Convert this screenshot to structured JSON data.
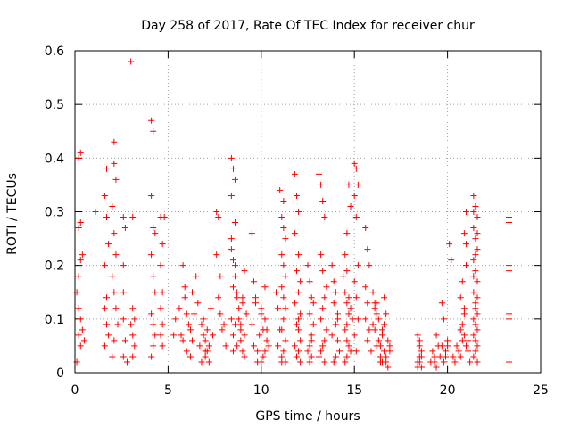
{
  "chart_data": {
    "type": "scatter",
    "title": "Day 258 of 2017, Rate Of TEC Index for receiver chur",
    "xlabel": "GPS time / hours",
    "ylabel": "ROTI / TECUs",
    "xlim": [
      0,
      25
    ],
    "ylim": [
      0,
      0.6
    ],
    "xticks": [
      0,
      5,
      10,
      15,
      20,
      25
    ],
    "yticks": [
      0,
      0.1,
      0.2,
      0.3,
      0.4,
      0.5,
      0.6
    ],
    "xtick_labels": [
      "0",
      "5",
      "10",
      "15",
      "20",
      "25"
    ],
    "ytick_labels": [
      "0",
      "0.1",
      "0.2",
      "0.3",
      "0.4",
      "0.5",
      "0.6"
    ],
    "grid": true,
    "marker": "+",
    "color": "#ff0000",
    "series": [
      {
        "name": "ROTI",
        "x": [
          0.1,
          0.2,
          0.3,
          0.3,
          0.4,
          0.5,
          0.1,
          0.2,
          0.2,
          0.3,
          0.4,
          0.2,
          0.3,
          0.2,
          0.3,
          1.1,
          1.6,
          1.7,
          1.7,
          1.6,
          1.8,
          1.7,
          1.6,
          1.7,
          1.6,
          1.8,
          2.1,
          2.1,
          2.2,
          2.0,
          2.1,
          2.2,
          2.0,
          2.1,
          2.2,
          2.3,
          2.1,
          2.0,
          2.6,
          2.7,
          2.6,
          2.6,
          2.6,
          2.7,
          2.6,
          2.8,
          3.0,
          3.1,
          3.1,
          3.2,
          3.0,
          3.1,
          3.2,
          3.1,
          4.1,
          4.2,
          4.1,
          4.2,
          4.3,
          4.1,
          4.2,
          4.3,
          4.1,
          4.2,
          4.3,
          4.2,
          4.1,
          4.6,
          4.7,
          4.6,
          4.7,
          4.6,
          4.7,
          4.6,
          4.7,
          4.8,
          5.3,
          5.4,
          5.6,
          5.8,
          5.9,
          5.7,
          5.8,
          6.0,
          5.9,
          6.1,
          6.0,
          6.2,
          6.3,
          6.2,
          6.4,
          6.5,
          6.3,
          6.6,
          6.7,
          6.8,
          6.9,
          7.0,
          6.8,
          7.1,
          7.2,
          7.0,
          7.1,
          7.3,
          6.9,
          7.2,
          7.4,
          7.0,
          7.6,
          7.7,
          7.6,
          7.8,
          7.7,
          7.8,
          8.0,
          7.9,
          8.1,
          8.4,
          8.5,
          8.6,
          8.4,
          8.6,
          8.4,
          8.5,
          8.6,
          8.5,
          8.7,
          8.8,
          8.4,
          8.6,
          8.5,
          8.7,
          8.5,
          8.6,
          8.4,
          8.7,
          8.8,
          8.9,
          9.0,
          8.9,
          9.1,
          9.0,
          9.2,
          9.1,
          8.9,
          9.0,
          9.1,
          9.5,
          9.6,
          9.7,
          9.5,
          9.6,
          9.8,
          9.9,
          10.0,
          9.7,
          9.8,
          10.1,
          10.2,
          10.0,
          10.3,
          10.1,
          10.2,
          10.3,
          10.4,
          10.2,
          10.0,
          10.8,
          10.9,
          11.0,
          10.9,
          11.1,
          11.0,
          11.2,
          11.1,
          11.2,
          11.3,
          11.1,
          11.2,
          11.3,
          11.1,
          11.2,
          11.3,
          11.2,
          11.1,
          11.3,
          11.2,
          11.1,
          11.3,
          11.8,
          11.9,
          12.0,
          11.8,
          12.0,
          11.9,
          12.1,
          12.0,
          11.8,
          12.1,
          11.9,
          12.0,
          12.1,
          11.8,
          12.0,
          11.9,
          12.1,
          12.0,
          12.5,
          12.6,
          12.7,
          12.6,
          12.8,
          12.7,
          12.6,
          12.5,
          12.7,
          12.8,
          12.6,
          12.7,
          13.1,
          13.2,
          13.3,
          13.4,
          13.2,
          13.3,
          13.5,
          13.4,
          13.3,
          13.2,
          13.5,
          13.4,
          13.3,
          13.2,
          13.1,
          13.4,
          13.8,
          13.9,
          14.0,
          13.9,
          14.1,
          14.0,
          13.8,
          14.1,
          14.2,
          14.0,
          13.9,
          14.1,
          14.4,
          14.5,
          14.6,
          14.7,
          14.6,
          14.5,
          14.6,
          14.7,
          14.8,
          14.6,
          14.5,
          14.7,
          14.8,
          14.6,
          14.5,
          14.7,
          14.6,
          14.8,
          14.9,
          15.0,
          15.1,
          15.2,
          15.0,
          15.1,
          15.2,
          15.0,
          15.1,
          15.2,
          15.0,
          15.1,
          15.6,
          15.7,
          15.8,
          15.6,
          15.7,
          15.6,
          15.8,
          15.7,
          15.9,
          16.0,
          16.1,
          16.2,
          16.0,
          16.1,
          16.3,
          16.2,
          16.4,
          16.1,
          16.3,
          16.5,
          16.4,
          16.6,
          16.5,
          16.7,
          16.6,
          16.8,
          16.7,
          16.9,
          16.6,
          16.8,
          16.5,
          16.7,
          16.9,
          16.4,
          16.2,
          18.4,
          18.5,
          18.6,
          18.5,
          18.4,
          18.6,
          18.5,
          18.4,
          18.6,
          18.5,
          19.1,
          19.2,
          19.3,
          19.4,
          19.5,
          19.3,
          19.4,
          19.6,
          19.7,
          19.8,
          19.9,
          20.0,
          19.7,
          19.8,
          20.1,
          20.2,
          19.9,
          20.0,
          20.3,
          20.4,
          20.5,
          20.6,
          20.7,
          20.8,
          20.9,
          20.7,
          20.8,
          21.0,
          20.9,
          21.0,
          20.8,
          20.9,
          21.0,
          20.7,
          21.1,
          21.2,
          21.1,
          21.0,
          20.9,
          21.4,
          21.5,
          21.6,
          21.4,
          21.5,
          21.6,
          21.4,
          21.5,
          21.6,
          21.4,
          21.5,
          21.6,
          21.4,
          21.5,
          21.6,
          21.4,
          21.5,
          21.6,
          21.5,
          21.4,
          21.6,
          21.5,
          21.4,
          21.6,
          21.5,
          21.6,
          21.4,
          23.3,
          23.3,
          23.3,
          23.3,
          23.3,
          23.3,
          23.3
        ],
        "y": [
          0.02,
          0.07,
          0.05,
          0.1,
          0.08,
          0.06,
          0.15,
          0.12,
          0.18,
          0.21,
          0.22,
          0.4,
          0.41,
          0.27,
          0.28,
          0.3,
          0.05,
          0.09,
          0.14,
          0.2,
          0.24,
          0.29,
          0.33,
          0.38,
          0.12,
          0.07,
          0.43,
          0.39,
          0.36,
          0.31,
          0.26,
          0.22,
          0.18,
          0.15,
          0.12,
          0.09,
          0.06,
          0.03,
          0.29,
          0.27,
          0.2,
          0.15,
          0.1,
          0.06,
          0.03,
          0.02,
          0.58,
          0.29,
          0.12,
          0.1,
          0.09,
          0.07,
          0.05,
          0.03,
          0.47,
          0.45,
          0.33,
          0.27,
          0.26,
          0.22,
          0.18,
          0.15,
          0.11,
          0.09,
          0.07,
          0.05,
          0.03,
          0.29,
          0.24,
          0.2,
          0.15,
          0.12,
          0.09,
          0.07,
          0.05,
          0.29,
          0.07,
          0.1,
          0.12,
          0.2,
          0.16,
          0.07,
          0.06,
          0.11,
          0.14,
          0.09,
          0.04,
          0.03,
          0.06,
          0.08,
          0.11,
          0.18,
          0.15,
          0.13,
          0.05,
          0.02,
          0.07,
          0.06,
          0.09,
          0.04,
          0.02,
          0.03,
          0.08,
          0.12,
          0.1,
          0.05,
          0.07,
          0.04,
          0.3,
          0.29,
          0.22,
          0.18,
          0.14,
          0.11,
          0.09,
          0.08,
          0.05,
          0.4,
          0.38,
          0.36,
          0.33,
          0.28,
          0.25,
          0.21,
          0.18,
          0.16,
          0.14,
          0.12,
          0.1,
          0.09,
          0.07,
          0.05,
          0.04,
          0.2,
          0.23,
          0.15,
          0.1,
          0.08,
          0.13,
          0.06,
          0.19,
          0.04,
          0.11,
          0.03,
          0.09,
          0.14,
          0.07,
          0.26,
          0.17,
          0.13,
          0.09,
          0.05,
          0.04,
          0.07,
          0.11,
          0.14,
          0.02,
          0.08,
          0.16,
          0.12,
          0.06,
          0.03,
          0.1,
          0.08,
          0.05,
          0.04,
          0.02,
          0.15,
          0.12,
          0.08,
          0.05,
          0.02,
          0.34,
          0.32,
          0.29,
          0.27,
          0.25,
          0.22,
          0.2,
          0.18,
          0.16,
          0.14,
          0.12,
          0.1,
          0.08,
          0.06,
          0.04,
          0.03,
          0.02,
          0.37,
          0.33,
          0.3,
          0.26,
          0.22,
          0.19,
          0.17,
          0.15,
          0.13,
          0.11,
          0.09,
          0.08,
          0.06,
          0.05,
          0.04,
          0.03,
          0.02,
          0.1,
          0.2,
          0.17,
          0.14,
          0.11,
          0.09,
          0.07,
          0.05,
          0.04,
          0.03,
          0.13,
          0.02,
          0.06,
          0.37,
          0.35,
          0.32,
          0.29,
          0.22,
          0.19,
          0.16,
          0.14,
          0.12,
          0.1,
          0.08,
          0.06,
          0.05,
          0.04,
          0.03,
          0.02,
          0.2,
          0.17,
          0.15,
          0.13,
          0.11,
          0.09,
          0.07,
          0.06,
          0.04,
          0.03,
          0.02,
          0.1,
          0.18,
          0.15,
          0.13,
          0.11,
          0.09,
          0.08,
          0.06,
          0.05,
          0.04,
          0.03,
          0.02,
          0.35,
          0.31,
          0.26,
          0.22,
          0.14,
          0.19,
          0.12,
          0.1,
          0.39,
          0.38,
          0.35,
          0.33,
          0.29,
          0.2,
          0.17,
          0.14,
          0.1,
          0.07,
          0.04,
          0.27,
          0.23,
          0.2,
          0.16,
          0.13,
          0.1,
          0.08,
          0.06,
          0.04,
          0.15,
          0.13,
          0.11,
          0.09,
          0.08,
          0.06,
          0.05,
          0.03,
          0.12,
          0.1,
          0.07,
          0.05,
          0.04,
          0.02,
          0.03,
          0.09,
          0.06,
          0.02,
          0.04,
          0.14,
          0.01,
          0.08,
          0.11,
          0.05,
          0.02,
          0.13,
          0.07,
          0.05,
          0.03,
          0.02,
          0.01,
          0.04,
          0.06,
          0.02,
          0.01,
          0.03,
          0.02,
          0.04,
          0.03,
          0.01,
          0.05,
          0.02,
          0.07,
          0.03,
          0.05,
          0.02,
          0.04,
          0.06,
          0.13,
          0.1,
          0.24,
          0.21,
          0.03,
          0.05,
          0.03,
          0.02,
          0.05,
          0.04,
          0.08,
          0.06,
          0.11,
          0.14,
          0.17,
          0.2,
          0.26,
          0.3,
          0.09,
          0.07,
          0.05,
          0.03,
          0.04,
          0.02,
          0.06,
          0.24,
          0.12,
          0.33,
          0.31,
          0.29,
          0.27,
          0.25,
          0.23,
          0.21,
          0.19,
          0.17,
          0.15,
          0.13,
          0.11,
          0.1,
          0.09,
          0.08,
          0.07,
          0.06,
          0.05,
          0.04,
          0.03,
          0.02,
          0.22,
          0.18,
          0.14,
          0.12,
          0.26,
          0.3,
          0.29,
          0.28,
          0.2,
          0.19,
          0.11,
          0.1,
          0.02
        ]
      }
    ]
  }
}
